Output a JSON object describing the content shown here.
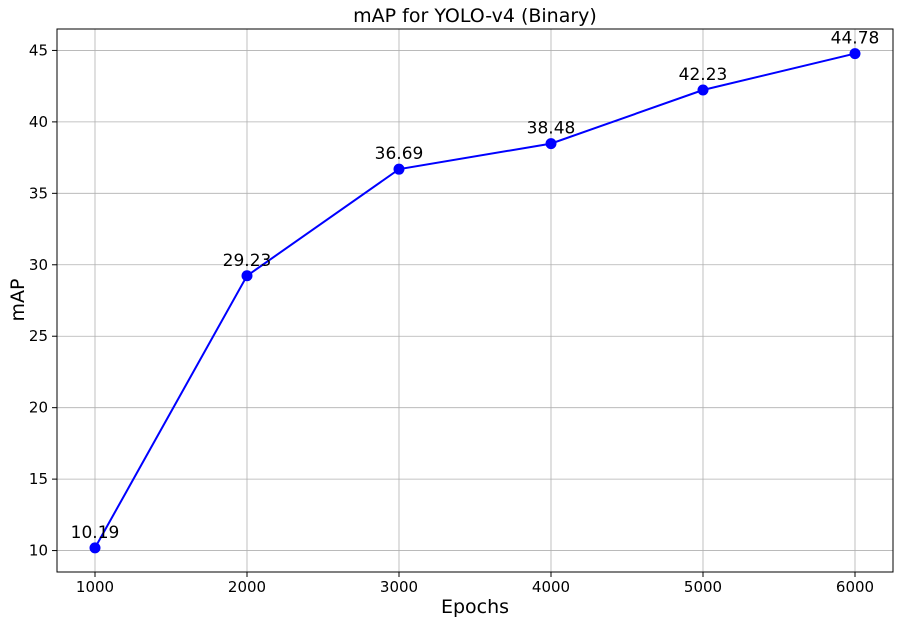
{
  "chart_data": {
    "type": "line",
    "title": "mAP for YOLO-v4 (Binary)",
    "xlabel": "Epochs",
    "ylabel": "mAP",
    "x": [
      1000,
      2000,
      3000,
      4000,
      5000,
      6000
    ],
    "series": [
      {
        "values": [
          10.19,
          29.23,
          36.69,
          38.48,
          42.23,
          44.78
        ],
        "color": "#0000ff"
      }
    ],
    "data_labels": [
      "10.19",
      "29.23",
      "36.69",
      "38.48",
      "42.23",
      "44.78"
    ],
    "xlim": [
      750,
      6250
    ],
    "ylim": [
      8.5,
      46.5
    ],
    "xticks": [
      1000,
      2000,
      3000,
      4000,
      5000,
      6000
    ],
    "yticks": [
      10,
      15,
      20,
      25,
      30,
      35,
      40,
      45
    ],
    "grid": true,
    "marker": "circle"
  }
}
